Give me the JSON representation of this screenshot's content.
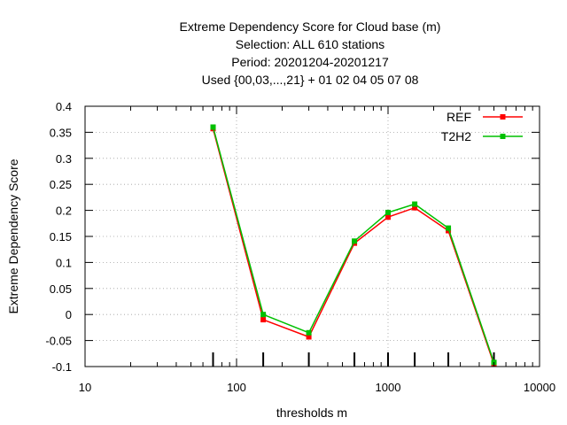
{
  "chart_data": {
    "type": "line",
    "title_lines": [
      "Extreme Dependency Score  for Cloud base (m)",
      "Selection: ALL    610 stations",
      "Period: 20201204-20201217",
      "Used {00,03,...,21} + 01 02 04 05 07 08"
    ],
    "xlabel": "thresholds m",
    "ylabel": "Extreme Dependency Score",
    "x_scale": "log",
    "xlim": [
      10,
      10000
    ],
    "ylim": [
      -0.1,
      0.4
    ],
    "x_ticks": [
      10,
      100,
      1000,
      10000
    ],
    "x_tick_labels": [
      "10",
      "100",
      "1000",
      "10000"
    ],
    "y_ticks": [
      -0.1,
      -0.05,
      0,
      0.05,
      0.1,
      0.15,
      0.2,
      0.25,
      0.3,
      0.35,
      0.4
    ],
    "y_tick_labels": [
      "-0.1",
      "-0.05",
      "0",
      "0.05",
      "0.1",
      "0.15",
      "0.2",
      "0.25",
      "0.3",
      "0.35",
      "0.4"
    ],
    "grid": true,
    "legend_position": "top-right",
    "threshold_markers": [
      70,
      150,
      300,
      600,
      1000,
      1500,
      2500,
      5000
    ],
    "x": [
      70,
      150,
      300,
      600,
      1000,
      1500,
      2500,
      5000
    ],
    "series": [
      {
        "name": "REF",
        "color": "#ff0000",
        "values": [
          0.357,
          -0.01,
          -0.043,
          0.137,
          0.187,
          0.205,
          0.161,
          -0.095
        ]
      },
      {
        "name": "T2H2",
        "color": "#00c000",
        "values": [
          0.36,
          0.0,
          -0.035,
          0.141,
          0.196,
          0.212,
          0.166,
          -0.092
        ]
      }
    ]
  }
}
